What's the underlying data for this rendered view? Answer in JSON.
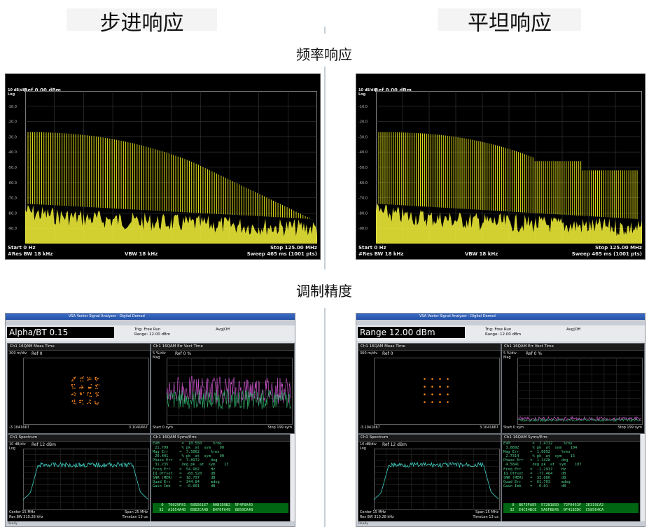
{
  "headings": {
    "left_title": "步进响应",
    "right_title": "平坦响应",
    "section_frequency": "频率响应",
    "section_modulation": "调制精度"
  },
  "spectrum_panels": [
    {
      "scale": "10 dB/div",
      "log": "Log",
      "ref": "Ref 0.00 dBm",
      "start": "Start 0 Hz",
      "res_bw": "#Res BW 18 kHz",
      "vbw": "VBW 18 kHz",
      "stop": "Stop 125.00 MHz",
      "sweep": "Sweep  465 ms (1001 pts)",
      "ticks": [
        "-10.0",
        "-20.0",
        "-30.0",
        "-40.0",
        "-50.0",
        "-60.0",
        "-70.0",
        "-80.0",
        "-90.0"
      ]
    },
    {
      "scale": "10 dB/div",
      "log": "Log",
      "ref": "Ref 0.00 dBm",
      "start": "Start 0 Hz",
      "res_bw": "#Res BW 18 kHz",
      "vbw": "VBW 18 kHz",
      "stop": "Stop 125.00 MHz",
      "sweep": "Sweep  465 ms (1001 pts)",
      "ticks": [
        "-10.0",
        "-20.0",
        "-30.0",
        "-40.0",
        "-50.0",
        "-60.0",
        "-70.0",
        "-80.0",
        "-90.0"
      ]
    }
  ],
  "vsa_panels": [
    {
      "window_title": "VSA Vector Signal Analyzer - Digital Demod",
      "meas_label": "Alpha/BT 0.15",
      "trig": "Trig: Free Run",
      "range": "Range: 12.00 dBm",
      "avg": "Avg|Off",
      "meas_time": {
        "title": "Ch1 16QAM Meas Time",
        "scale": "300 m/div",
        "ref": "Ref 0",
        "xmin": "-3.1041667",
        "xmax": "3.1041667"
      },
      "err_vect": {
        "title": "Ch1 16QAM Err Vect Time",
        "scale": "5 %/div",
        "mag": "Mag",
        "ref": "Ref 0 %",
        "start": "Start 0  sym",
        "stop": "Stop 199  sym"
      },
      "spectrum": {
        "title": "Ch1 Spectrum",
        "scale": "10 dB/div",
        "log": "Log",
        "ref": "Ref 12 dBm",
        "center": "Center 15 MHz",
        "span": "Span 25 MHz",
        "res_bw": "Res BW 310.28 kHz",
        "timelen": "TimeLen 13 us"
      },
      "syms": {
        "title": "Ch1 16QAM Syms/Errs",
        "text": "EVM          =  10.550     %rms\n 21.799      % pk  at  sym    90\nMag Err     =  7.5062     %rms\n 20.401      % pk  at  sym    90\nPhase Err   =  7.8972     deg\n 31.235      deg pk  at  sym    13\nFreq Err    =  54.902     Hz\nIQ Offset   =  -60.528    dB\nSNR (MER)   =  18.797     dB\nQuad Err    =  344.84     mdeg\nGain Imb    =  -0.001     dB",
        "hex": "  0  79029F81  585D61E7  00B1D9B2  5F4F6A4D\n 32  A1654A4D  EBE2CA4D  B4F0FA49  8850CA4B"
      },
      "status": "Ready"
    },
    {
      "window_title": "VSA Vector Signal Analyzer - Digital Demod",
      "meas_label": "Range 12.00 dBm",
      "trig": "Trig: Free Run",
      "range": "Range: 12.00 dBm",
      "avg": "Avg|Off",
      "meas_time": {
        "title": "Ch1 16QAM Meas Time",
        "scale": "300 m/div",
        "ref": "Ref 0",
        "xmin": "-3.1041667",
        "xmax": "3.1041667"
      },
      "err_vect": {
        "title": "Ch1 16QAM Err Vect Time",
        "scale": "5 %/div",
        "mag": "Mag",
        "ref": "Ref 0 %",
        "start": "Start 0  sym",
        "stop": "Stop 199  sym"
      },
      "spectrum": {
        "title": "Ch1 Spectrum",
        "scale": "10 dB/div",
        "log": "Log",
        "ref": "Ref 12 dBm",
        "center": "Center 15 MHz",
        "span": "Span 25 MHz",
        "res_bw": "Res BW 310.28 kHz",
        "timelen": "TimeLen 13 us"
      },
      "syms": {
        "title": "Ch1 16QAM Syms/Errs",
        "text": "EVM          =  1.4712     %rms\n 3.0892      % pk  at  sym    104\nMag Err     =  1.0092     %rms\n 2.7314      % pk  at  sym    15\nPhase Err   =  1.1428     deg\n 4.5841      deg pk  at  sym    107\nFreq Err    =  -1.2917    Hz\nIQ Offset   =  -77.464    dB\nSNR (MER)   =  33.080     dB\nQuad Err    =  61.703     mdeg\nGain Imb    =  -0.01      dB",
        "hex": "  0  B673FAE5  5728185D  72F0453F  2E319CA2\n 32  E4C54BCE  5A6FB845  0F4183DC  C58564CA"
      },
      "status": "Ready"
    }
  ],
  "colors": {
    "trace_yellow": "#f2ef1c",
    "noise_yellow": "#f7f43a",
    "constellation": "#ff8a1c",
    "err_magenta": "#d85ad8",
    "err_green": "#2fb06a",
    "spectrum_trace": "#3fd4c6"
  }
}
